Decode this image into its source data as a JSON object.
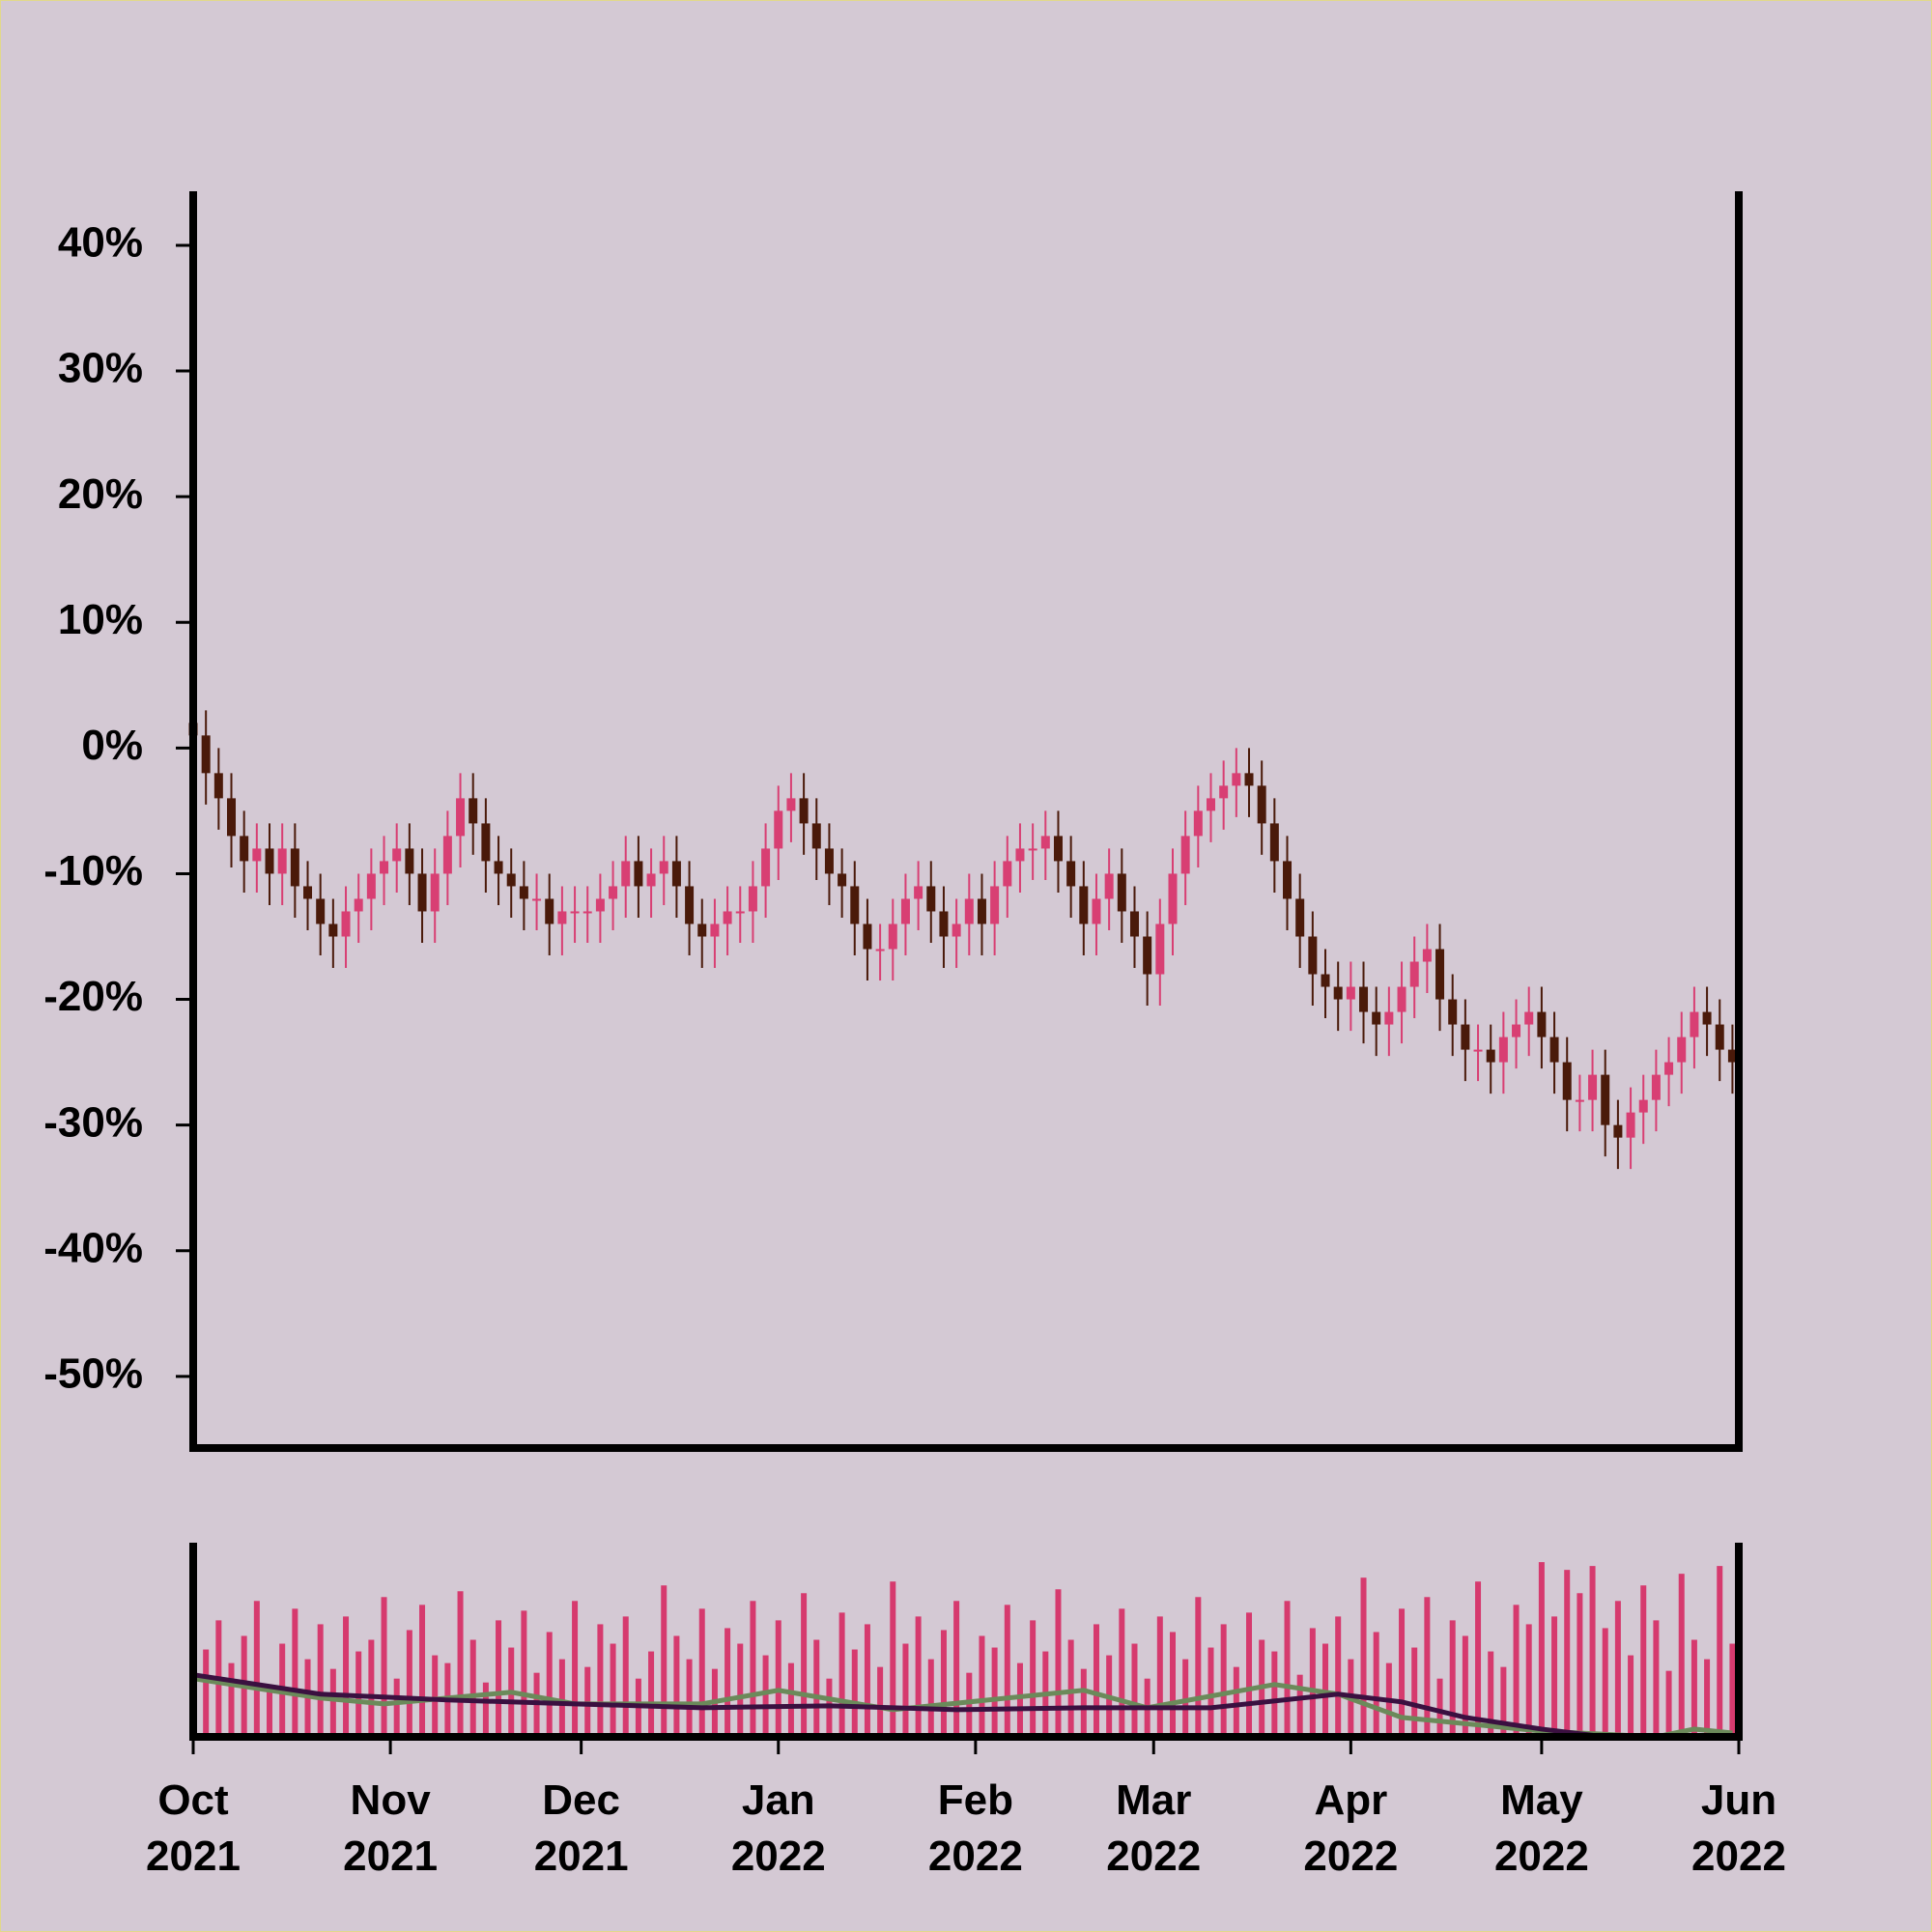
{
  "chart_data": [
    {
      "type": "candlestick",
      "x": [
        0,
        2,
        4,
        6,
        8,
        10,
        12,
        14,
        16,
        18,
        20,
        22,
        24,
        26,
        28,
        30,
        32,
        34,
        36,
        38,
        40,
        42,
        44,
        46,
        48,
        50,
        52,
        54,
        56,
        58,
        60,
        62,
        64,
        66,
        68,
        70,
        72,
        74,
        76,
        78,
        80,
        82,
        84,
        86,
        88,
        90,
        92,
        94,
        96,
        98,
        100,
        102,
        104,
        106,
        108,
        110,
        112,
        114,
        116,
        118,
        120,
        122,
        124,
        126,
        128,
        130,
        132,
        134,
        136,
        138,
        140,
        142,
        144,
        146,
        148,
        150,
        152,
        154,
        156,
        158,
        160,
        162,
        164,
        166,
        168,
        170,
        172,
        174,
        176,
        178,
        180,
        182,
        184,
        186,
        188,
        190,
        192,
        194,
        196,
        198,
        200,
        202,
        204,
        206,
        208,
        210,
        212,
        214,
        216,
        218,
        220,
        222,
        224,
        226,
        228,
        230,
        232,
        234,
        236,
        238,
        240,
        242
      ],
      "open": [
        2,
        1,
        -2,
        -4,
        -7,
        -9,
        -8,
        -10,
        -8,
        -11,
        -12,
        -14,
        -15,
        -13,
        -12,
        -10,
        -9,
        -8,
        -10,
        -13,
        -10,
        -7,
        -4,
        -6,
        -9,
        -10,
        -11,
        -12,
        -12,
        -14,
        -13,
        -13,
        -13,
        -12,
        -11,
        -9,
        -11,
        -10,
        -9,
        -11,
        -14,
        -15,
        -14,
        -13,
        -13,
        -11,
        -8,
        -5,
        -4,
        -6,
        -8,
        -10,
        -11,
        -14,
        -16,
        -16,
        -14,
        -12,
        -11,
        -13,
        -15,
        -14,
        -12,
        -14,
        -11,
        -9,
        -8,
        -8,
        -7,
        -9,
        -11,
        -14,
        -12,
        -10,
        -13,
        -15,
        -18,
        -14,
        -10,
        -7,
        -5,
        -4,
        -3,
        -2,
        -3,
        -6,
        -9,
        -12,
        -15,
        -18,
        -19,
        -20,
        -19,
        -21,
        -22,
        -21,
        -19,
        -17,
        -16,
        -20,
        -22,
        -24,
        -24,
        -25,
        -23,
        -22,
        -21,
        -23,
        -25,
        -28,
        -28,
        -26,
        -30,
        -31,
        -29,
        -28,
        -26,
        -25,
        -23,
        -21,
        -22,
        -24
      ],
      "high": [
        4,
        3,
        0,
        -2,
        -5,
        -6,
        -6,
        -6,
        -6,
        -9,
        -10,
        -12,
        -11,
        -10,
        -8,
        -7,
        -6,
        -6,
        -8,
        -8,
        -5,
        -2,
        -2,
        -4,
        -7,
        -8,
        -9,
        -10,
        -10,
        -11,
        -11,
        -11,
        -10,
        -9,
        -7,
        -7,
        -8,
        -7,
        -7,
        -9,
        -12,
        -12,
        -11,
        -11,
        -9,
        -6,
        -3,
        -2,
        -2,
        -4,
        -6,
        -8,
        -9,
        -12,
        -14,
        -12,
        -10,
        -9,
        -9,
        -11,
        -12,
        -10,
        -10,
        -9,
        -7,
        -6,
        -6,
        -5,
        -5,
        -7,
        -9,
        -10,
        -8,
        -8,
        -11,
        -13,
        -12,
        -8,
        -5,
        -3,
        -2,
        -1,
        0,
        0,
        -1,
        -4,
        -7,
        -10,
        -13,
        -16,
        -17,
        -17,
        -17,
        -19,
        -19,
        -17,
        -15,
        -14,
        -14,
        -18,
        -20,
        -22,
        -22,
        -21,
        -20,
        -19,
        -19,
        -21,
        -23,
        -26,
        -24,
        -24,
        -28,
        -27,
        -26,
        -24,
        -23,
        -21,
        -19,
        -19,
        -20,
        -22
      ],
      "low": [
        -1.5,
        -4.5,
        -6.5,
        -9.5,
        -11.5,
        -11.5,
        -12.5,
        -12.5,
        -13.5,
        -14.5,
        -16.5,
        -17.5,
        -17.5,
        -15.5,
        -14.5,
        -12.5,
        -11.5,
        -12.5,
        -15.5,
        -15.5,
        -12.5,
        -9.5,
        -8.5,
        -11.5,
        -12.5,
        -13.5,
        -14.5,
        -14.5,
        -16.5,
        -16.5,
        -15.5,
        -15.5,
        -15.5,
        -14.5,
        -13.5,
        -13.5,
        -13.5,
        -12.5,
        -13.5,
        -16.5,
        -17.5,
        -17.5,
        -16.5,
        -15.5,
        -15.5,
        -13.5,
        -10.5,
        -7.5,
        -8.5,
        -10.5,
        -12.5,
        -13.5,
        -16.5,
        -18.5,
        -18.5,
        -18.5,
        -16.5,
        -14.5,
        -15.5,
        -17.5,
        -17.5,
        -16.5,
        -16.5,
        -16.5,
        -13.5,
        -11.5,
        -10.5,
        -10.5,
        -11.5,
        -13.5,
        -16.5,
        -16.5,
        -14.5,
        -15.5,
        -17.5,
        -20.5,
        -20.5,
        -16.5,
        -12.5,
        -9.5,
        -7.5,
        -6.5,
        -5.5,
        -5.5,
        -8.5,
        -11.5,
        -14.5,
        -17.5,
        -20.5,
        -21.5,
        -22.5,
        -22.5,
        -23.5,
        -24.5,
        -24.5,
        -23.5,
        -21.5,
        -19.5,
        -22.5,
        -24.5,
        -26.5,
        -26.5,
        -27.5,
        -27.5,
        -25.5,
        -24.5,
        -25.5,
        -27.5,
        -30.5,
        -30.5,
        -30.5,
        -32.5,
        -33.5,
        -33.5,
        -31.5,
        -30.5,
        -28.5,
        -27.5,
        -25.5,
        -24.5,
        -26.5,
        -27.5
      ],
      "close": [
        1,
        -2,
        -4,
        -7,
        -9,
        -8,
        -10,
        -8,
        -11,
        -12,
        -14,
        -15,
        -13,
        -12,
        -10,
        -9,
        -8,
        -10,
        -13,
        -10,
        -7,
        -4,
        -6,
        -9,
        -10,
        -11,
        -12,
        -12,
        -14,
        -13,
        -13,
        -13,
        -12,
        -11,
        -9,
        -11,
        -10,
        -9,
        -11,
        -14,
        -15,
        -14,
        -13,
        -13,
        -11,
        -8,
        -5,
        -4,
        -6,
        -8,
        -10,
        -11,
        -14,
        -16,
        -16,
        -14,
        -12,
        -11,
        -13,
        -15,
        -14,
        -12,
        -14,
        -11,
        -9,
        -8,
        -8,
        -7,
        -9,
        -11,
        -14,
        -12,
        -10,
        -13,
        -15,
        -18,
        -14,
        -10,
        -7,
        -5,
        -4,
        -3,
        -2,
        -3,
        -6,
        -9,
        -12,
        -15,
        -18,
        -19,
        -20,
        -19,
        -21,
        -22,
        -21,
        -19,
        -17,
        -16,
        -20,
        -22,
        -24,
        -24,
        -25,
        -23,
        -22,
        -21,
        -23,
        -25,
        -28,
        -28,
        -26,
        -30,
        -31,
        -29,
        -28,
        -26,
        -25,
        -23,
        -21,
        -22,
        -24,
        -25
      ],
      "up_color": "#d83f73",
      "down_color": "#4a1a0a",
      "xlim": [
        0,
        243
      ],
      "ylim": [
        -55.7,
        44.3
      ],
      "yticks": [
        {
          "value": 40,
          "label": "40%"
        },
        {
          "value": 30,
          "label": "30%"
        },
        {
          "value": 20,
          "label": "20%"
        },
        {
          "value": 10,
          "label": "10%"
        },
        {
          "value": 0,
          "label": "0%"
        },
        {
          "value": -10,
          "label": "-10%"
        },
        {
          "value": -20,
          "label": "-20%"
        },
        {
          "value": -30,
          "label": "-30%"
        },
        {
          "value": -40,
          "label": "-40%"
        },
        {
          "value": -50,
          "label": "-50%"
        }
      ]
    },
    {
      "type": "bar",
      "x": [
        0,
        2,
        4,
        6,
        8,
        10,
        12,
        14,
        16,
        18,
        20,
        22,
        24,
        26,
        28,
        30,
        32,
        34,
        36,
        38,
        40,
        42,
        44,
        46,
        48,
        50,
        52,
        54,
        56,
        58,
        60,
        62,
        64,
        66,
        68,
        70,
        72,
        74,
        76,
        78,
        80,
        82,
        84,
        86,
        88,
        90,
        92,
        94,
        96,
        98,
        100,
        102,
        104,
        106,
        108,
        110,
        112,
        114,
        116,
        118,
        120,
        122,
        124,
        126,
        128,
        130,
        132,
        134,
        136,
        138,
        140,
        142,
        144,
        146,
        148,
        150,
        152,
        154,
        156,
        158,
        160,
        162,
        164,
        166,
        168,
        170,
        172,
        174,
        176,
        178,
        180,
        182,
        184,
        186,
        188,
        190,
        192,
        194,
        196,
        198,
        200,
        202,
        204,
        206,
        208,
        210,
        212,
        214,
        216,
        218,
        220,
        222,
        224,
        226,
        228,
        230,
        232,
        234,
        236,
        238,
        240,
        242
      ],
      "values": [
        30,
        45,
        60,
        38,
        52,
        70,
        25,
        48,
        66,
        40,
        58,
        35,
        62,
        44,
        50,
        72,
        30,
        55,
        68,
        42,
        38,
        75,
        50,
        28,
        60,
        46,
        65,
        33,
        54,
        40,
        70,
        36,
        58,
        48,
        62,
        30,
        44,
        78,
        52,
        40,
        66,
        35,
        56,
        48,
        70,
        42,
        60,
        38,
        74,
        50,
        30,
        64,
        45,
        58,
        36,
        80,
        48,
        62,
        40,
        55,
        70,
        33,
        52,
        46,
        68,
        38,
        60,
        44,
        76,
        50,
        35,
        58,
        42,
        66,
        48,
        30,
        62,
        54,
        40,
        72,
        46,
        58,
        36,
        64,
        50,
        44,
        70,
        32,
        56,
        48,
        62,
        40,
        82,
        54,
        38,
        66,
        46,
        72,
        30,
        60,
        52,
        80,
        44,
        36,
        68,
        58,
        90,
        62,
        86,
        74,
        88,
        56,
        70,
        42,
        78,
        60,
        34,
        84,
        50,
        40,
        88,
        48
      ],
      "color": "#d63a6e",
      "lines": [
        {
          "color": "#6b8a5a",
          "x": [
            0,
            20,
            30,
            50,
            60,
            80,
            92,
            110,
            140,
            150,
            170,
            180,
            190,
            212,
            230,
            236,
            242
          ],
          "values": [
            30,
            20,
            17,
            23,
            17,
            17,
            24,
            14,
            24,
            15,
            27,
            22,
            10,
            3,
            0,
            4,
            2
          ]
        },
        {
          "color": "#3a1040",
          "x": [
            0,
            20,
            40,
            60,
            80,
            100,
            120,
            140,
            160,
            180,
            190,
            200,
            212,
            222,
            242
          ],
          "values": [
            32,
            22,
            19,
            17,
            15,
            16,
            14,
            15,
            15,
            22,
            18,
            10,
            4,
            0,
            0
          ]
        }
      ],
      "xlim": [
        0,
        243
      ],
      "ylim": [
        0,
        100
      ],
      "xticks": [
        {
          "value": 0,
          "label": "Oct 2021"
        },
        {
          "value": 31,
          "label": "Nov 2021"
        },
        {
          "value": 61,
          "label": "Dec 2021"
        },
        {
          "value": 92,
          "label": "Jan 2022"
        },
        {
          "value": 123,
          "label": "Feb 2022"
        },
        {
          "value": 151,
          "label": "Mar 2022"
        },
        {
          "value": 182,
          "label": "Apr 2022"
        },
        {
          "value": 212,
          "label": "May 2022"
        },
        {
          "value": 243,
          "label": "Jun 2022"
        }
      ]
    }
  ]
}
